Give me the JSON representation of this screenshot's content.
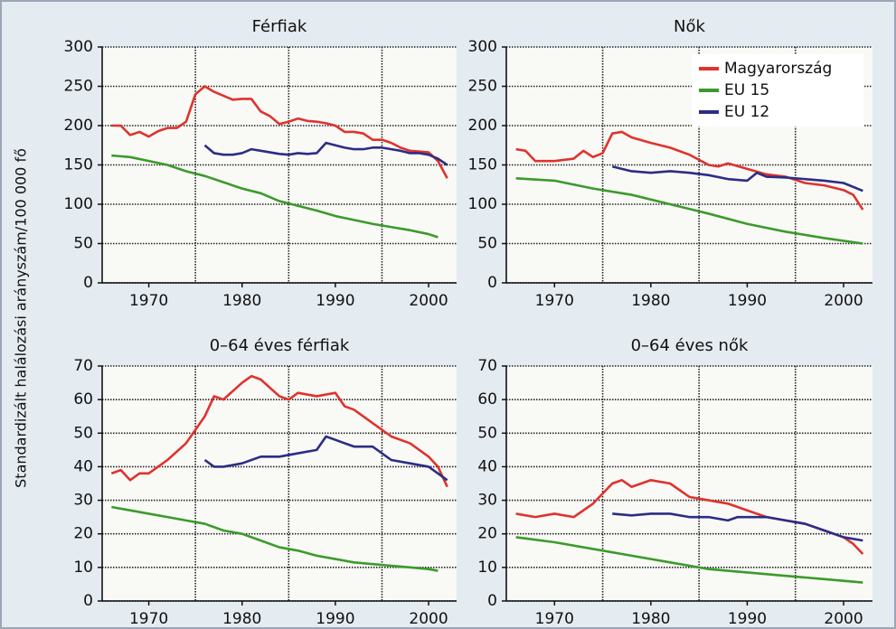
{
  "ylabel": "Standardizált halálozási arányszám/100 000 fő",
  "chart_data": [
    {
      "type": "line",
      "title": "Férfiak",
      "xlim": [
        1965,
        2003
      ],
      "xticks": [
        1970,
        1980,
        1990,
        2000
      ],
      "xgrid": [
        1975,
        1985,
        1995
      ],
      "ylim": [
        0,
        300
      ],
      "yticks": [
        0,
        50,
        100,
        150,
        200,
        250,
        300
      ],
      "grid": true,
      "series": [
        {
          "name": "Magyarország",
          "color": "#e0322e",
          "x": [
            1966,
            1967,
            1968,
            1969,
            1970,
            1971,
            1972,
            1973,
            1974,
            1975,
            1976,
            1977,
            1978,
            1979,
            1980,
            1981,
            1982,
            1983,
            1984,
            1985,
            1986,
            1987,
            1988,
            1989,
            1990,
            1991,
            1992,
            1993,
            1994,
            1995,
            1996,
            1997,
            1998,
            1999,
            2000,
            2001,
            2002
          ],
          "values": [
            200,
            200,
            188,
            192,
            186,
            193,
            197,
            197,
            205,
            240,
            250,
            243,
            238,
            233,
            234,
            234,
            218,
            212,
            202,
            205,
            209,
            206,
            205,
            203,
            200,
            192,
            192,
            190,
            182,
            182,
            178,
            172,
            168,
            167,
            166,
            155,
            133
          ]
        },
        {
          "name": "EU 15",
          "color": "#3c9a2c",
          "x": [
            1966,
            1968,
            1970,
            1972,
            1974,
            1976,
            1978,
            1980,
            1982,
            1984,
            1986,
            1988,
            1990,
            1992,
            1994,
            1996,
            1998,
            2000,
            2001
          ],
          "values": [
            162,
            160,
            155,
            150,
            142,
            136,
            128,
            120,
            114,
            104,
            98,
            92,
            85,
            80,
            75,
            71,
            67,
            62,
            58
          ]
        },
        {
          "name": "EU 12",
          "color": "#2b2d86",
          "x": [
            1976,
            1977,
            1978,
            1979,
            1980,
            1981,
            1982,
            1983,
            1984,
            1985,
            1986,
            1987,
            1988,
            1989,
            1990,
            1991,
            1992,
            1993,
            1994,
            1995,
            1996,
            1997,
            1998,
            1999,
            2000,
            2001,
            2002
          ],
          "values": [
            175,
            165,
            163,
            163,
            165,
            170,
            168,
            166,
            164,
            163,
            165,
            164,
            165,
            178,
            175,
            172,
            170,
            170,
            172,
            172,
            170,
            168,
            165,
            165,
            163,
            158,
            150
          ]
        }
      ]
    },
    {
      "type": "line",
      "title": "Nők",
      "legend": "upper right",
      "xlim": [
        1965,
        2003
      ],
      "xticks": [
        1970,
        1980,
        1990,
        2000
      ],
      "xgrid": [
        1975,
        1985,
        1995
      ],
      "ylim": [
        0,
        300
      ],
      "yticks": [
        0,
        50,
        100,
        150,
        200,
        250,
        300
      ],
      "grid": true,
      "series": [
        {
          "name": "Magyarország",
          "color": "#e0322e",
          "x": [
            1966,
            1967,
            1968,
            1970,
            1972,
            1973,
            1974,
            1975,
            1976,
            1977,
            1978,
            1980,
            1982,
            1984,
            1986,
            1987,
            1988,
            1990,
            1992,
            1994,
            1996,
            1998,
            2000,
            2001,
            2002
          ],
          "values": [
            170,
            168,
            155,
            155,
            158,
            168,
            160,
            165,
            190,
            192,
            185,
            178,
            172,
            163,
            150,
            148,
            152,
            145,
            138,
            135,
            127,
            124,
            118,
            112,
            93
          ]
        },
        {
          "name": "EU 15",
          "color": "#3c9a2c",
          "x": [
            1966,
            1970,
            1974,
            1978,
            1982,
            1986,
            1990,
            1994,
            1998,
            2002
          ],
          "values": [
            133,
            130,
            120,
            112,
            100,
            88,
            75,
            65,
            57,
            50
          ]
        },
        {
          "name": "EU 12",
          "color": "#2b2d86",
          "x": [
            1976,
            1978,
            1980,
            1982,
            1984,
            1986,
            1988,
            1990,
            1991,
            1992,
            1994,
            1996,
            1998,
            2000,
            2002
          ],
          "values": [
            148,
            142,
            140,
            142,
            140,
            137,
            132,
            130,
            140,
            135,
            134,
            132,
            130,
            127,
            117
          ]
        }
      ]
    },
    {
      "type": "line",
      "title": "0–64 éves férfiak",
      "xlim": [
        1965,
        2003
      ],
      "xticks": [
        1970,
        1980,
        1990,
        2000
      ],
      "xgrid": [
        1975,
        1985,
        1995
      ],
      "ylim": [
        0,
        70
      ],
      "yticks": [
        0,
        10,
        20,
        30,
        40,
        50,
        60,
        70
      ],
      "grid": true,
      "series": [
        {
          "name": "Magyarország",
          "color": "#e0322e",
          "x": [
            1966,
            1967,
            1968,
            1969,
            1970,
            1972,
            1974,
            1976,
            1977,
            1978,
            1980,
            1981,
            1982,
            1984,
            1985,
            1986,
            1988,
            1990,
            1991,
            1992,
            1994,
            1996,
            1998,
            2000,
            2001,
            2002
          ],
          "values": [
            38,
            39,
            36,
            38,
            38,
            42,
            47,
            55,
            61,
            60,
            65,
            67,
            66,
            61,
            60,
            62,
            61,
            62,
            58,
            57,
            53,
            49,
            47,
            43,
            40,
            34
          ]
        },
        {
          "name": "EU 15",
          "color": "#3c9a2c",
          "x": [
            1966,
            1968,
            1970,
            1972,
            1974,
            1976,
            1978,
            1980,
            1982,
            1984,
            1986,
            1988,
            1990,
            1992,
            1994,
            1996,
            1998,
            2000,
            2001
          ],
          "values": [
            28,
            27,
            26,
            25,
            24,
            23,
            21,
            20,
            18,
            16,
            15,
            13.5,
            12.5,
            11.5,
            11,
            10.5,
            10,
            9.5,
            9
          ]
        },
        {
          "name": "EU 12",
          "color": "#2b2d86",
          "x": [
            1976,
            1977,
            1978,
            1980,
            1982,
            1984,
            1986,
            1988,
            1989,
            1990,
            1992,
            1994,
            1996,
            1998,
            2000,
            2002
          ],
          "values": [
            42,
            40,
            40,
            41,
            43,
            43,
            44,
            45,
            49,
            48,
            46,
            46,
            42,
            41,
            40,
            36
          ]
        }
      ]
    },
    {
      "type": "line",
      "title": "0–64 éves nők",
      "xlim": [
        1965,
        2003
      ],
      "xticks": [
        1970,
        1980,
        1990,
        2000
      ],
      "xgrid": [
        1975,
        1985,
        1995
      ],
      "ylim": [
        0,
        70
      ],
      "yticks": [
        0,
        10,
        20,
        30,
        40,
        50,
        60,
        70
      ],
      "grid": true,
      "series": [
        {
          "name": "Magyarország",
          "color": "#e0322e",
          "x": [
            1966,
            1968,
            1970,
            1972,
            1974,
            1976,
            1977,
            1978,
            1980,
            1982,
            1984,
            1986,
            1988,
            1990,
            1992,
            1994,
            1996,
            1998,
            2000,
            2001,
            2002
          ],
          "values": [
            26,
            25,
            26,
            25,
            29,
            35,
            36,
            34,
            36,
            35,
            31,
            30,
            29,
            27,
            25,
            24,
            23,
            21,
            19,
            17,
            14
          ]
        },
        {
          "name": "EU 15",
          "color": "#3c9a2c",
          "x": [
            1966,
            1970,
            1974,
            1978,
            1982,
            1986,
            1990,
            1994,
            1998,
            2002
          ],
          "values": [
            19,
            17.5,
            15.5,
            13.5,
            11.5,
            9.5,
            8.5,
            7.5,
            6.5,
            5.5
          ]
        },
        {
          "name": "EU 12",
          "color": "#2b2d86",
          "x": [
            1976,
            1978,
            1980,
            1982,
            1984,
            1986,
            1988,
            1989,
            1990,
            1992,
            1994,
            1996,
            1998,
            2000,
            2002
          ],
          "values": [
            26,
            25.5,
            26,
            26,
            25,
            25,
            24,
            25,
            25,
            25,
            24,
            23,
            21,
            19,
            18
          ]
        }
      ]
    }
  ]
}
